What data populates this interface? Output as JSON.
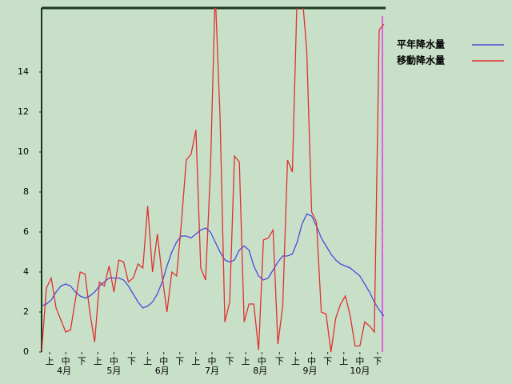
{
  "chart_data": {
    "type": "line",
    "x": [
      0,
      3,
      6,
      9,
      12,
      15,
      18,
      21,
      24,
      27,
      30,
      33,
      36,
      39,
      42,
      45,
      48,
      51,
      54,
      57,
      60,
      63,
      66,
      69,
      72,
      75,
      78,
      81,
      84,
      87,
      90,
      93,
      96,
      99,
      102,
      105,
      108,
      111,
      114,
      117,
      120,
      123,
      126,
      129,
      132,
      135,
      138,
      141,
      144,
      147,
      150,
      153,
      156,
      159,
      162,
      165,
      168,
      171,
      174,
      177,
      180,
      183,
      186,
      189,
      192,
      195,
      198,
      201,
      204,
      207,
      210,
      213
    ],
    "series": [
      {
        "name": "平年降水量",
        "color": "#4a4ae0",
        "values": [
          2.3,
          2.4,
          2.6,
          3.0,
          3.3,
          3.4,
          3.3,
          3.0,
          2.8,
          2.7,
          2.8,
          3.0,
          3.3,
          3.5,
          3.7,
          3.7,
          3.7,
          3.6,
          3.3,
          2.9,
          2.5,
          2.2,
          2.3,
          2.5,
          2.9,
          3.5,
          4.3,
          5.0,
          5.5,
          5.8,
          5.8,
          5.7,
          5.9,
          6.1,
          6.2,
          6.0,
          5.5,
          5.0,
          4.6,
          4.5,
          4.6,
          5.1,
          5.3,
          5.1,
          4.3,
          3.8,
          3.6,
          3.7,
          4.1,
          4.5,
          4.8,
          4.8,
          4.9,
          5.5,
          6.4,
          6.9,
          6.8,
          6.3,
          5.7,
          5.3,
          4.9,
          4.6,
          4.4,
          4.3,
          4.2,
          4.0,
          3.8,
          3.4,
          3.0,
          2.5,
          2.1,
          1.8
        ]
      },
      {
        "name": "移動降水量",
        "color": "#e03030",
        "values": [
          0,
          3.2,
          3.7,
          2.2,
          1.6,
          1.0,
          1.1,
          2.6,
          4.0,
          3.9,
          2.0,
          0.5,
          3.5,
          3.3,
          4.3,
          3.0,
          4.6,
          4.5,
          3.5,
          3.7,
          4.4,
          4.2,
          7.3,
          4.0,
          5.9,
          3.8,
          2.0,
          4.0,
          3.8,
          6.5,
          9.6,
          9.9,
          11.1,
          4.2,
          3.6,
          9.0,
          18,
          11.8,
          1.5,
          2.5,
          9.8,
          9.5,
          1.5,
          2.4,
          2.4,
          0.1,
          5.6,
          5.7,
          6.1,
          0.4,
          2.3,
          9.6,
          9.0,
          18,
          18,
          15.0,
          7.0,
          6.5,
          2.0,
          1.9,
          0.0,
          1.7,
          2.4,
          2.8,
          1.8,
          0.3,
          0.3,
          1.5,
          1.3,
          1.0,
          16.1,
          16.4
        ]
      }
    ],
    "xlim": [
      0,
      214
    ],
    "xticks": [
      {
        "value": 5,
        "label": "上"
      },
      {
        "value": 15,
        "label": "中"
      },
      {
        "value": 25,
        "label": "下"
      },
      {
        "value": 35,
        "label": "上"
      },
      {
        "value": 45,
        "label": "中"
      },
      {
        "value": 56,
        "label": "下"
      },
      {
        "value": 66,
        "label": "上"
      },
      {
        "value": 76,
        "label": "中"
      },
      {
        "value": 86,
        "label": "下"
      },
      {
        "value": 96,
        "label": "上"
      },
      {
        "value": 106,
        "label": "中"
      },
      {
        "value": 117,
        "label": "下"
      },
      {
        "value": 127,
        "label": "上"
      },
      {
        "value": 137,
        "label": "中"
      },
      {
        "value": 148,
        "label": "下"
      },
      {
        "value": 158,
        "label": "上"
      },
      {
        "value": 168,
        "label": "中"
      },
      {
        "value": 178,
        "label": "下"
      },
      {
        "value": 188,
        "label": "上"
      },
      {
        "value": 198,
        "label": "中"
      },
      {
        "value": 209,
        "label": "下"
      }
    ],
    "month_ticks": [
      {
        "value": 14,
        "label": "4月"
      },
      {
        "value": 45,
        "label": "5月"
      },
      {
        "value": 75,
        "label": "6月"
      },
      {
        "value": 106,
        "label": "7月"
      },
      {
        "value": 136,
        "label": "8月"
      },
      {
        "value": 167,
        "label": "9月"
      },
      {
        "value": 198,
        "label": "10月"
      }
    ],
    "ylim": [
      0,
      17.2
    ],
    "yticks": [
      0,
      2,
      4,
      6,
      8,
      10,
      12,
      14
    ]
  }
}
